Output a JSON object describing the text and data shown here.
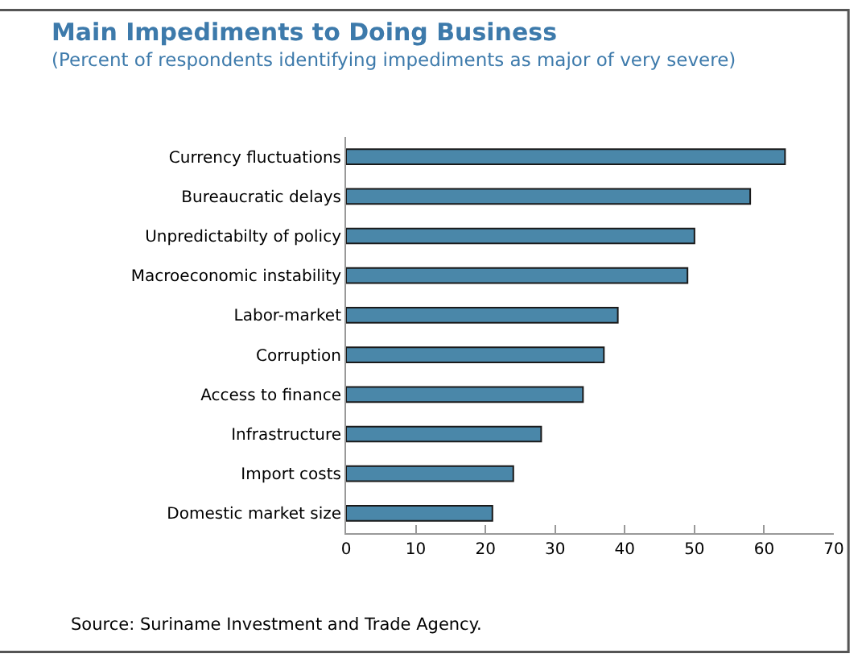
{
  "chart_data": {
    "type": "bar",
    "orientation": "horizontal",
    "title": "Main Impediments to Doing Business",
    "subtitle": "(Percent of respondents identifying impediments as major of very severe)",
    "categories": [
      "Currency fluctuations",
      "Bureaucratic delays",
      "Unpredictabilty of policy",
      "Macroeconomic instability",
      "Labor-market",
      "Corruption",
      "Access to finance",
      "Infrastructure",
      "Import costs",
      "Domestic market size"
    ],
    "values": [
      63,
      58,
      50,
      49,
      39,
      37,
      34,
      28,
      24,
      21
    ],
    "color": "#4a87a9",
    "xlim": [
      0,
      70
    ],
    "xticks": [
      0,
      10,
      20,
      30,
      40,
      50,
      60,
      70
    ],
    "grid": false,
    "annotations": [
      "Source: Suriname Investment and Trade Agency."
    ]
  }
}
